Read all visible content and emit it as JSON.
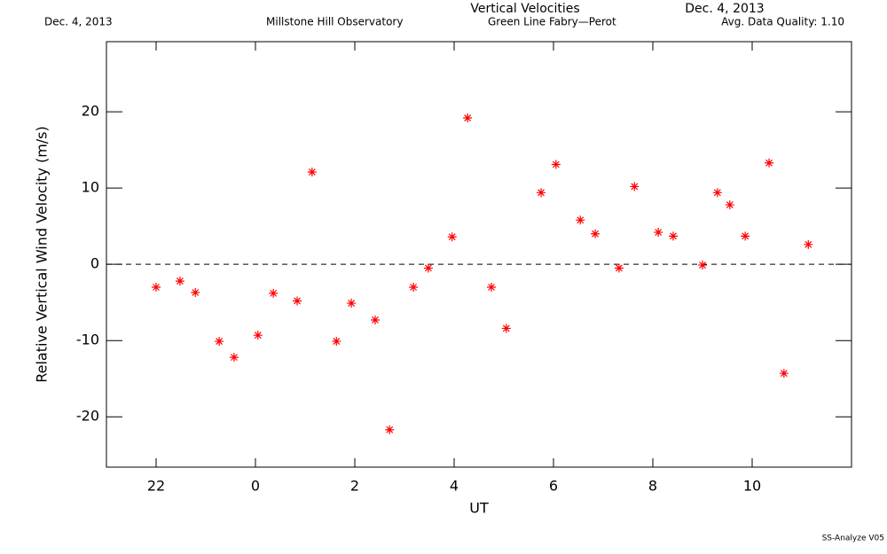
{
  "chart_data": {
    "type": "scatter",
    "title": "Vertical Velocities",
    "header_left": "Dec. 4, 2013",
    "header_site": "Millstone Hill Observatory",
    "header_date": "Dec. 4, 2013",
    "header_instrument": "Green Line Fabry—Perot",
    "header_quality": "Avg. Data Quality: 1.10",
    "footer": "SS-Analyze V05",
    "xlabel": "UT",
    "ylabel": "Relative Vertical Wind Velocity (m/s)",
    "xlim": [
      21,
      36
    ],
    "xticks": [
      22,
      {
        "value": 24,
        "label": "0"
      },
      {
        "value": 26,
        "label": "2"
      },
      {
        "value": 28,
        "label": "4"
      },
      {
        "value": 30,
        "label": "6"
      },
      {
        "value": 32,
        "label": "8"
      },
      {
        "value": 34,
        "label": "10"
      }
    ],
    "ylim": [
      -26.6,
      29.2
    ],
    "yticks": [
      -20,
      -10,
      0,
      10,
      20
    ],
    "reference_line": 0,
    "color": "#ff0000",
    "marker": "asterisk",
    "x": [
      22.0,
      22.48,
      22.79,
      23.27,
      23.57,
      24.05,
      24.36,
      24.84,
      25.14,
      25.63,
      25.93,
      26.41,
      26.7,
      27.18,
      27.48,
      27.96,
      28.27,
      28.75,
      29.05,
      29.75,
      30.05,
      30.54,
      30.84,
      31.32,
      31.63,
      32.11,
      32.41,
      33.0,
      33.3,
      33.55,
      33.86,
      34.34,
      34.64,
      35.13
    ],
    "values": [
      -3.0,
      -2.2,
      -3.7,
      -10.1,
      -12.2,
      -9.3,
      -3.8,
      -4.8,
      12.1,
      -10.1,
      -5.1,
      -7.3,
      -21.7,
      -3.0,
      -0.5,
      3.6,
      19.2,
      -3.0,
      -8.4,
      9.4,
      13.1,
      5.8,
      4.0,
      -0.5,
      10.2,
      4.2,
      3.7,
      -0.1,
      9.4,
      7.8,
      3.7,
      13.3,
      -14.3,
      2.6
    ]
  }
}
